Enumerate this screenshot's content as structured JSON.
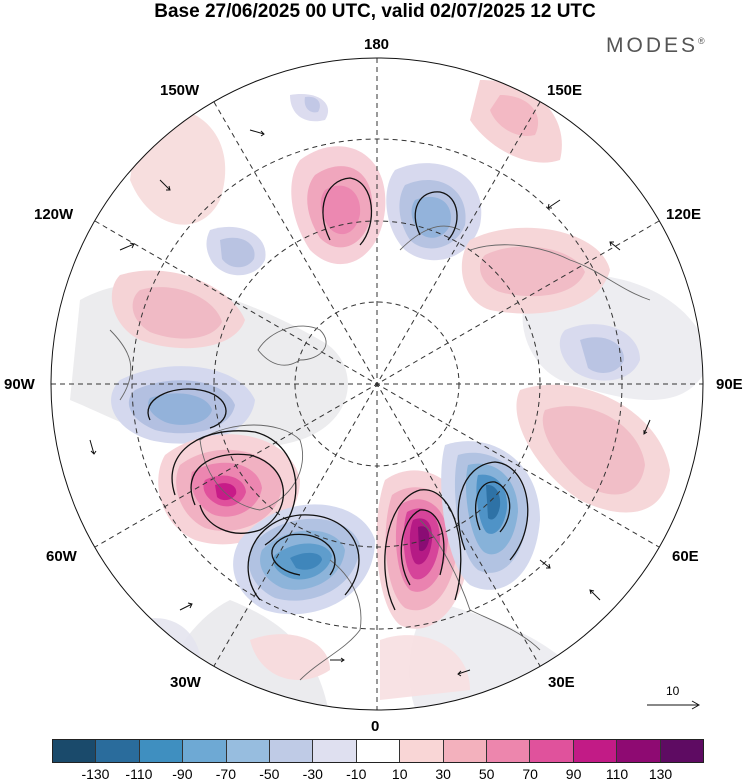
{
  "header": {
    "title": "Base 27/06/2025 00 UTC, valid 02/07/2025 12 UTC",
    "brand": "MODES",
    "brand_mark": "®"
  },
  "map": {
    "projection": "north polar stereographic",
    "longitude_labels": {
      "lon_180": "180",
      "lon_150e": "150E",
      "lon_120e": "120E",
      "lon_90e": "90E",
      "lon_60e": "60E",
      "lon_30e": "30E",
      "lon_0": "0",
      "lon_30w": "30W",
      "lon_60w": "60W",
      "lon_90w": "90W",
      "lon_120w": "120W",
      "lon_150w": "150W"
    },
    "vector_reference": "10"
  },
  "colorbar": {
    "colors": [
      "#1a4a6b",
      "#2a6c9c",
      "#3f8fc0",
      "#6ea9d4",
      "#97bddf",
      "#bfcbe6",
      "#dfe0f0",
      "#ffffff",
      "#f9d6d6",
      "#f3b1bd",
      "#ed86ad",
      "#e0529c",
      "#c21b86",
      "#8e0a72",
      "#5e0b62"
    ],
    "tick_labels": [
      "-130",
      "-110",
      "-90",
      "-70",
      "-50",
      "-30",
      "-10",
      "10",
      "30",
      "50",
      "70",
      "90",
      "110",
      "130"
    ]
  }
}
